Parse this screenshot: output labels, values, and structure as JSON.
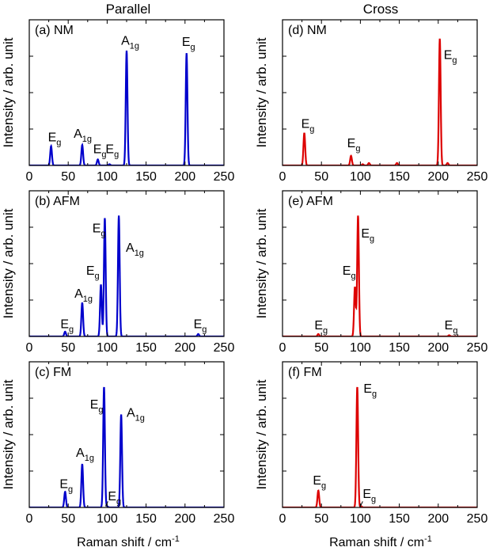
{
  "columns": [
    {
      "title": "Parallel",
      "color": "#0000cc"
    },
    {
      "title": "Cross",
      "color": "#dd0000"
    }
  ],
  "ylabel": "Intensity / arb. unit",
  "xlabel_main": "Raman shift / cm",
  "xlabel_sup": "-1",
  "chart_data": [
    {
      "type": "line",
      "label": "(a) NM",
      "column": "Parallel",
      "xlim": [
        0,
        250
      ],
      "xticks": [
        0,
        50,
        100,
        150,
        200,
        250
      ],
      "peaks": [
        {
          "x": 28,
          "y": 0.16
        },
        {
          "x": 68,
          "y": 0.17
        },
        {
          "x": 88,
          "y": 0.05
        },
        {
          "x": 103,
          "y": 0.01
        },
        {
          "x": 125,
          "y": 0.95
        },
        {
          "x": 202,
          "y": 0.93
        }
      ],
      "annotations": [
        {
          "base": "E",
          "sub": "g",
          "x": 24,
          "y": 0.2
        },
        {
          "base": "A",
          "sub": "1g",
          "x": 57,
          "y": 0.23
        },
        {
          "base": "E",
          "sub": "g",
          "x": 82,
          "y": 0.1
        },
        {
          "base": "E",
          "sub": "g",
          "x": 98,
          "y": 0.1
        },
        {
          "base": "A",
          "sub": "1g",
          "x": 118,
          "y": 1.0
        },
        {
          "base": "E",
          "sub": "g",
          "x": 196,
          "y": 0.99
        }
      ]
    },
    {
      "type": "line",
      "label": "(b) AFM",
      "column": "Parallel",
      "xlim": [
        0,
        250
      ],
      "xticks": [
        0,
        50,
        100,
        150,
        200,
        250
      ],
      "peaks": [
        {
          "x": 46,
          "y": 0.04
        },
        {
          "x": 68,
          "y": 0.28
        },
        {
          "x": 92,
          "y": 0.43
        },
        {
          "x": 97,
          "y": 0.98
        },
        {
          "x": 115,
          "y": 1.0
        },
        {
          "x": 217,
          "y": 0.02
        }
      ],
      "annotations": [
        {
          "base": "E",
          "sub": "g",
          "x": 40,
          "y": 0.07
        },
        {
          "base": "A",
          "sub": "1g",
          "x": 58,
          "y": 0.32
        },
        {
          "base": "E",
          "sub": "g",
          "x": 73,
          "y": 0.51
        },
        {
          "base": "E",
          "sub": "g",
          "x": 81,
          "y": 0.86
        },
        {
          "base": "A",
          "sub": "1g",
          "x": 124,
          "y": 0.7
        },
        {
          "base": "E",
          "sub": "g",
          "x": 211,
          "y": 0.07
        }
      ]
    },
    {
      "type": "line",
      "label": "(c) FM",
      "column": "Parallel",
      "xlim": [
        0,
        250
      ],
      "xticks": [
        0,
        50,
        100,
        150,
        200,
        250
      ],
      "peaks": [
        {
          "x": 46,
          "y": 0.13
        },
        {
          "x": 68,
          "y": 0.36
        },
        {
          "x": 96,
          "y": 1.0
        },
        {
          "x": 100,
          "y": 0.01
        },
        {
          "x": 118,
          "y": 0.77
        }
      ],
      "annotations": [
        {
          "base": "E",
          "sub": "g",
          "x": 39,
          "y": 0.16
        },
        {
          "base": "A",
          "sub": "1g",
          "x": 60,
          "y": 0.42
        },
        {
          "base": "E",
          "sub": "g",
          "x": 78,
          "y": 0.82
        },
        {
          "base": "E",
          "sub": "g",
          "x": 101,
          "y": 0.06
        },
        {
          "base": "A",
          "sub": "1g",
          "x": 125,
          "y": 0.75
        }
      ]
    },
    {
      "type": "line",
      "label": "(d) NM",
      "column": "Cross",
      "xlim": [
        0,
        250
      ],
      "xticks": [
        0,
        50,
        100,
        150,
        200,
        250
      ],
      "peaks": [
        {
          "x": 28,
          "y": 0.27
        },
        {
          "x": 88,
          "y": 0.08
        },
        {
          "x": 103,
          "y": 0.01
        },
        {
          "x": 111,
          "y": 0.02
        },
        {
          "x": 147,
          "y": 0.02
        },
        {
          "x": 202,
          "y": 1.05
        },
        {
          "x": 212,
          "y": 0.02
        }
      ],
      "annotations": [
        {
          "base": "E",
          "sub": "g",
          "x": 24,
          "y": 0.31
        },
        {
          "base": "E",
          "sub": "g",
          "x": 83,
          "y": 0.15
        },
        {
          "base": "E",
          "sub": "g",
          "x": 207,
          "y": 0.88
        }
      ]
    },
    {
      "type": "line",
      "label": "(e) AFM",
      "column": "Cross",
      "xlim": [
        0,
        250
      ],
      "xticks": [
        0,
        50,
        100,
        150,
        200,
        250
      ],
      "peaks": [
        {
          "x": 46,
          "y": 0.02
        },
        {
          "x": 93,
          "y": 0.41
        },
        {
          "x": 97,
          "y": 1.0
        },
        {
          "x": 214,
          "y": 0.01
        }
      ],
      "annotations": [
        {
          "base": "E",
          "sub": "g",
          "x": 41,
          "y": 0.06
        },
        {
          "base": "E",
          "sub": "g",
          "x": 77,
          "y": 0.51
        },
        {
          "base": "E",
          "sub": "g",
          "x": 101,
          "y": 0.82
        },
        {
          "base": "E",
          "sub": "g",
          "x": 208,
          "y": 0.06
        }
      ]
    },
    {
      "type": "line",
      "label": "(f) FM",
      "column": "Cross",
      "xlim": [
        0,
        250
      ],
      "xticks": [
        0,
        50,
        100,
        150,
        200,
        250
      ],
      "peaks": [
        {
          "x": 46,
          "y": 0.14
        },
        {
          "x": 96,
          "y": 1.0
        },
        {
          "x": 101,
          "y": 0.01
        }
      ],
      "annotations": [
        {
          "base": "E",
          "sub": "g",
          "x": 39,
          "y": 0.19
        },
        {
          "base": "E",
          "sub": "g",
          "x": 104,
          "y": 0.95
        },
        {
          "base": "E",
          "sub": "g",
          "x": 103,
          "y": 0.08
        }
      ]
    }
  ]
}
